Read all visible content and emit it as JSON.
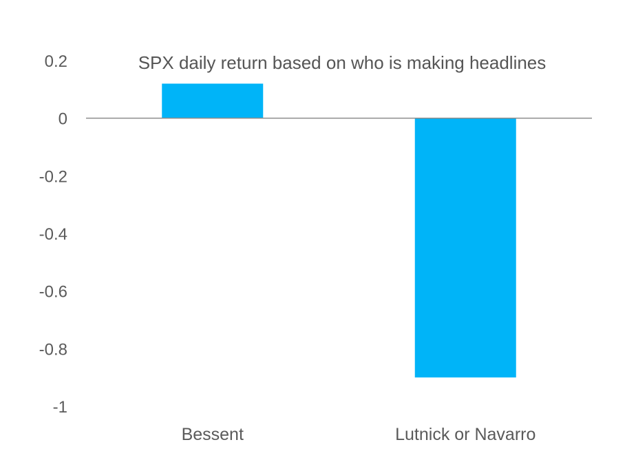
{
  "chart_data": {
    "type": "bar",
    "title": "SPX daily return based on who is making headlines",
    "xlabel": "",
    "ylabel": "",
    "categories": [
      "Bessent",
      "Lutnick or Navarro"
    ],
    "values": [
      0.12,
      -0.9
    ],
    "ylim": [
      -1,
      0.2
    ],
    "yticks": [
      0.2,
      0,
      -0.2,
      -0.4,
      -0.6,
      -0.8,
      -1
    ],
    "ytick_labels": [
      "0.2",
      "0",
      "-0.2",
      "-0.4",
      "-0.6",
      "-0.8",
      "-1"
    ],
    "grid": false,
    "legend": "none",
    "colors": {
      "bar": "#00b4f8",
      "baseline": "#8c8c8c",
      "text": "#5a5a5a"
    }
  }
}
